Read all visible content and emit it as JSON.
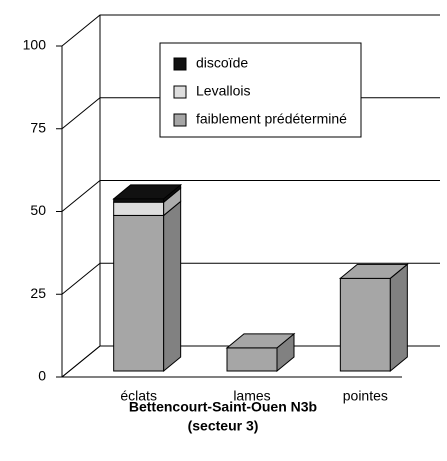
{
  "chart_data": {
    "type": "bar3d_stacked",
    "title": "Bettencourt-Saint-Ouen N3b",
    "subtitle": "(secteur 3)",
    "categories": [
      "éclats",
      "lames",
      "pointes"
    ],
    "series": [
      {
        "name": "faiblement prédéterminé",
        "color": "#a6a6a6",
        "values": [
          47,
          7,
          28
        ]
      },
      {
        "name": "Levallois",
        "color": "#dedede",
        "values": [
          4,
          0,
          0
        ]
      },
      {
        "name": "discoïde",
        "color": "#111111",
        "values": [
          1,
          0,
          0
        ]
      }
    ],
    "ylim": [
      0,
      100
    ],
    "yticks": [
      0,
      25,
      50,
      75,
      100
    ],
    "grid": true
  }
}
